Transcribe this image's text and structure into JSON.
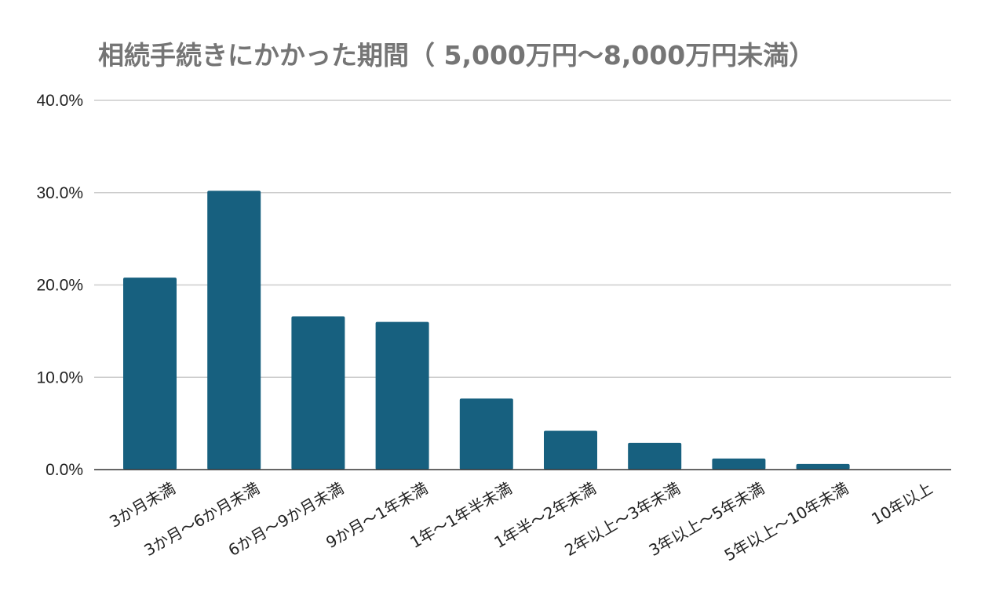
{
  "chart_data": {
    "type": "bar",
    "title": "相続手続きにかかった期間（ 5,000万円～8,000万円未満）",
    "xlabel": "",
    "ylabel": "",
    "categories": [
      "3か月未満",
      "3か月～6か月未満",
      "6か月～9か月未満",
      "9か月～1年未満",
      "1年～1年半未満",
      "1年半～2年未満",
      "2年以上～3年未満",
      "3年以上～5年未満",
      "5年以上～10年未満",
      "10年以上"
    ],
    "values": [
      20.8,
      30.2,
      16.6,
      16.0,
      7.7,
      4.2,
      2.9,
      1.2,
      0.6,
      0.0
    ],
    "ylim": [
      0,
      40
    ],
    "yticks": [
      0,
      10,
      20,
      30,
      40
    ],
    "ytick_labels": [
      "0.0%",
      "10.0%",
      "20.0%",
      "30.0%",
      "40.0%"
    ],
    "value_format": "percent",
    "grid": true,
    "legend": "none",
    "bar_color": "#17607f"
  }
}
